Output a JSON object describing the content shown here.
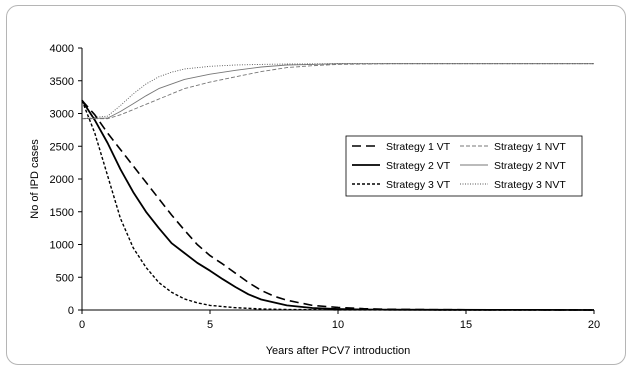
{
  "chart_data": {
    "type": "line",
    "xlabel": "Years after PCV7 introduction",
    "ylabel": "No of IPD cases",
    "xlim": [
      0,
      20
    ],
    "ylim": [
      0,
      4000
    ],
    "xticks": [
      0,
      5,
      10,
      15,
      20
    ],
    "yticks": [
      0,
      500,
      1000,
      1500,
      2000,
      2500,
      3000,
      3500,
      4000
    ],
    "grid": false,
    "legend_position": "right",
    "series": [
      {
        "name": "Strategy 1 VT",
        "style": "long-dash",
        "color": "#000000",
        "x": [
          0,
          0.5,
          1,
          1.5,
          2,
          2.5,
          3,
          3.5,
          4,
          4.5,
          5,
          5.5,
          6,
          6.5,
          7,
          7.5,
          8,
          9,
          10,
          11,
          12,
          14,
          16,
          18,
          20
        ],
        "y": [
          3200,
          2980,
          2700,
          2450,
          2200,
          1950,
          1700,
          1450,
          1220,
          1000,
          830,
          700,
          560,
          420,
          300,
          210,
          150,
          70,
          40,
          20,
          10,
          5,
          3,
          2,
          0
        ]
      },
      {
        "name": "Strategy 1 NVT",
        "style": "dashed-thin",
        "color": "#777777",
        "x": [
          0,
          1,
          1.5,
          2,
          3,
          4,
          5,
          6,
          7,
          8,
          9,
          10,
          12,
          14,
          16,
          18,
          20
        ],
        "y": [
          2920,
          2920,
          2980,
          3060,
          3220,
          3380,
          3480,
          3560,
          3640,
          3700,
          3730,
          3750,
          3760,
          3760,
          3760,
          3760,
          3760
        ]
      },
      {
        "name": "Strategy 2 VT",
        "style": "solid",
        "color": "#000000",
        "x": [
          0,
          0.5,
          1,
          1.5,
          2,
          2.5,
          3,
          3.5,
          4,
          4.5,
          5,
          5.5,
          6,
          6.5,
          7,
          8,
          9,
          10,
          11,
          12,
          14,
          16,
          18,
          20
        ],
        "y": [
          3200,
          2900,
          2550,
          2150,
          1800,
          1500,
          1250,
          1020,
          870,
          720,
          600,
          470,
          350,
          240,
          160,
          70,
          30,
          15,
          8,
          5,
          3,
          2,
          1,
          0
        ]
      },
      {
        "name": "Strategy 2 NVT",
        "style": "solid-thin",
        "color": "#777777",
        "x": [
          0,
          1,
          1.5,
          2,
          2.5,
          3,
          4,
          5,
          6,
          7,
          8,
          9,
          10,
          12,
          14,
          16,
          18,
          20
        ],
        "y": [
          2920,
          2930,
          3030,
          3150,
          3270,
          3380,
          3520,
          3600,
          3660,
          3710,
          3740,
          3750,
          3760,
          3760,
          3760,
          3760,
          3760,
          3760
        ]
      },
      {
        "name": "Strategy 3 VT",
        "style": "short-dash",
        "color": "#000000",
        "x": [
          0,
          0.5,
          1,
          1.5,
          2,
          2.5,
          3,
          3.5,
          4,
          4.5,
          5,
          6,
          7,
          8,
          9,
          10,
          12,
          14,
          16,
          18,
          20
        ],
        "y": [
          3200,
          2700,
          2050,
          1400,
          950,
          650,
          420,
          270,
          170,
          110,
          70,
          35,
          15,
          8,
          4,
          2,
          1,
          0,
          0,
          0,
          0
        ]
      },
      {
        "name": "Strategy 3 NVT",
        "style": "dotted",
        "color": "#555555",
        "x": [
          0,
          1,
          1.5,
          2,
          2.5,
          3,
          3.5,
          4,
          5,
          6,
          7,
          8,
          10,
          12,
          14,
          16,
          18,
          20
        ],
        "y": [
          2920,
          2960,
          3120,
          3300,
          3450,
          3560,
          3630,
          3680,
          3720,
          3740,
          3750,
          3755,
          3760,
          3760,
          3760,
          3760,
          3760,
          3760
        ]
      }
    ]
  }
}
